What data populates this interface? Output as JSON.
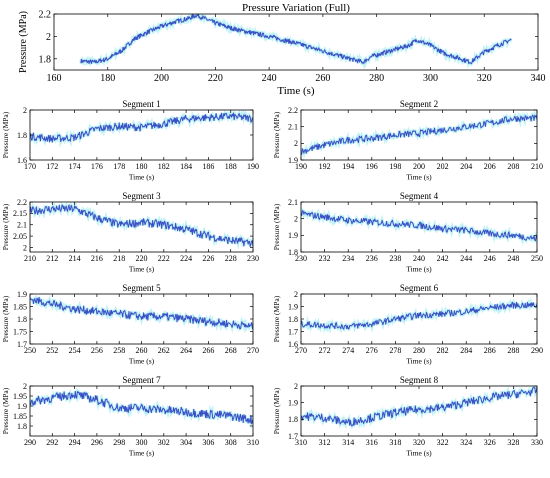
{
  "chart_data": [
    {
      "type": "line",
      "title": "Pressure Variation (Full)",
      "xlabel": "Time (s)",
      "ylabel": "Pressure (MPa)",
      "xlim": [
        160,
        340
      ],
      "ylim": [
        1.7,
        2.2
      ],
      "xticks": [
        160,
        180,
        200,
        220,
        240,
        260,
        280,
        300,
        320,
        340
      ],
      "yticks": [
        1.8,
        2,
        2.2
      ],
      "grid": false,
      "series": [
        {
          "x": [
            170,
            175,
            180,
            185,
            190,
            195,
            200,
            205,
            210,
            213,
            215,
            220,
            225,
            230,
            240,
            250,
            260,
            270,
            275,
            278,
            285,
            292,
            295,
            300,
            305,
            310,
            315,
            320,
            325,
            330
          ],
          "y": [
            1.78,
            1.77,
            1.8,
            1.87,
            1.98,
            2.04,
            2.09,
            2.13,
            2.16,
            2.19,
            2.17,
            2.12,
            2.08,
            2.05,
            2.0,
            1.94,
            1.87,
            1.8,
            1.77,
            1.82,
            1.87,
            1.92,
            1.97,
            1.92,
            1.85,
            1.81,
            1.77,
            1.86,
            1.92,
            1.97
          ],
          "noise": 0.02
        }
      ]
    },
    {
      "type": "line",
      "title": "Segment 1",
      "xlabel": "Time (s)",
      "ylabel": "Pressure (MPa)",
      "xlim": [
        170,
        190
      ],
      "ylim": [
        1.6,
        2.0
      ],
      "xticks": [
        170,
        172,
        174,
        176,
        178,
        180,
        182,
        184,
        186,
        188,
        190
      ],
      "yticks": [
        1.6,
        1.8,
        2
      ],
      "series": [
        {
          "x": [
            170,
            172,
            174,
            176,
            178,
            180,
            182,
            184,
            186,
            188,
            190
          ],
          "y": [
            1.79,
            1.77,
            1.78,
            1.85,
            1.87,
            1.86,
            1.89,
            1.93,
            1.94,
            1.95,
            1.93
          ],
          "noise": 0.03
        }
      ]
    },
    {
      "type": "line",
      "title": "Segment 2",
      "xlabel": "Time (s)",
      "ylabel": "Pressure (MPa)",
      "xlim": [
        190,
        210
      ],
      "ylim": [
        1.9,
        2.2
      ],
      "xticks": [
        190,
        192,
        194,
        196,
        198,
        200,
        202,
        204,
        206,
        208,
        210
      ],
      "yticks": [
        1.9,
        2,
        2.1,
        2.2
      ],
      "series": [
        {
          "x": [
            190,
            192,
            194,
            196,
            198,
            200,
            202,
            204,
            206,
            208,
            210
          ],
          "y": [
            1.95,
            1.99,
            2.02,
            2.03,
            2.05,
            2.06,
            2.08,
            2.1,
            2.12,
            2.15,
            2.15
          ],
          "noise": 0.02
        }
      ]
    },
    {
      "type": "line",
      "title": "Segment 3",
      "xlabel": "Time (s)",
      "ylabel": "Pressure (MPa)",
      "xlim": [
        210,
        230
      ],
      "ylim": [
        1.98,
        2.2
      ],
      "xticks": [
        210,
        212,
        214,
        216,
        218,
        220,
        222,
        224,
        226,
        228,
        230
      ],
      "yticks": [
        2,
        2.05,
        2.1,
        2.15,
        2.2
      ],
      "series": [
        {
          "x": [
            210,
            212,
            214,
            216,
            218,
            220,
            222,
            224,
            226,
            228,
            230
          ],
          "y": [
            2.16,
            2.17,
            2.17,
            2.13,
            2.1,
            2.11,
            2.1,
            2.08,
            2.05,
            2.03,
            2.02
          ],
          "noise": 0.018
        }
      ]
    },
    {
      "type": "line",
      "title": "Segment 4",
      "xlabel": "Time (s)",
      "ylabel": "Pressure (MPa)",
      "xlim": [
        230,
        250
      ],
      "ylim": [
        1.8,
        2.1
      ],
      "xticks": [
        230,
        232,
        234,
        236,
        238,
        240,
        242,
        244,
        246,
        248,
        250
      ],
      "yticks": [
        1.8,
        1.9,
        2,
        2.1
      ],
      "series": [
        {
          "x": [
            230,
            232,
            234,
            236,
            238,
            240,
            242,
            244,
            246,
            248,
            250
          ],
          "y": [
            2.03,
            2.01,
            1.99,
            1.98,
            1.97,
            1.96,
            1.94,
            1.93,
            1.91,
            1.9,
            1.88
          ],
          "noise": 0.02
        }
      ]
    },
    {
      "type": "line",
      "title": "Segment 5",
      "xlabel": "Time (s)",
      "ylabel": "Pressure (MPa)",
      "xlim": [
        250,
        270
      ],
      "ylim": [
        1.7,
        1.9
      ],
      "xticks": [
        250,
        252,
        254,
        256,
        258,
        260,
        262,
        264,
        266,
        268,
        270
      ],
      "yticks": [
        1.7,
        1.75,
        1.8,
        1.85,
        1.9
      ],
      "series": [
        {
          "x": [
            250,
            252,
            254,
            256,
            258,
            260,
            262,
            264,
            266,
            268,
            270
          ],
          "y": [
            1.88,
            1.86,
            1.84,
            1.83,
            1.82,
            1.81,
            1.81,
            1.8,
            1.79,
            1.78,
            1.77
          ],
          "noise": 0.016
        }
      ]
    },
    {
      "type": "line",
      "title": "Segment 6",
      "xlabel": "Time (s)",
      "ylabel": "Pressure (MPa)",
      "xlim": [
        270,
        290
      ],
      "ylim": [
        1.6,
        2.0
      ],
      "xticks": [
        270,
        272,
        274,
        276,
        278,
        280,
        282,
        284,
        286,
        288,
        290
      ],
      "yticks": [
        1.6,
        1.7,
        1.8,
        1.9,
        2
      ],
      "series": [
        {
          "x": [
            270,
            272,
            274,
            276,
            278,
            280,
            282,
            284,
            286,
            288,
            290
          ],
          "y": [
            1.76,
            1.75,
            1.74,
            1.76,
            1.8,
            1.83,
            1.84,
            1.86,
            1.89,
            1.91,
            1.91
          ],
          "noise": 0.025
        }
      ]
    },
    {
      "type": "line",
      "title": "Segment 7",
      "xlabel": "Time (s)",
      "ylabel": "Pressure (MPa)",
      "xlim": [
        290,
        310
      ],
      "ylim": [
        1.75,
        2.0
      ],
      "xticks": [
        290,
        292,
        294,
        296,
        298,
        300,
        302,
        304,
        306,
        308,
        310
      ],
      "yticks": [
        1.8,
        1.85,
        1.9,
        1.95,
        2
      ],
      "series": [
        {
          "x": [
            290,
            292,
            294,
            296,
            298,
            300,
            302,
            304,
            306,
            308,
            310
          ],
          "y": [
            1.92,
            1.94,
            1.96,
            1.93,
            1.89,
            1.89,
            1.88,
            1.87,
            1.86,
            1.85,
            1.83
          ],
          "noise": 0.022
        }
      ]
    },
    {
      "type": "line",
      "title": "Segment 8",
      "xlabel": "Time (s)",
      "ylabel": "Pressure (MPa)",
      "xlim": [
        310,
        330
      ],
      "ylim": [
        1.7,
        2.0
      ],
      "xticks": [
        310,
        312,
        314,
        316,
        318,
        320,
        322,
        324,
        326,
        328,
        330
      ],
      "yticks": [
        1.7,
        1.8,
        1.9,
        2
      ],
      "series": [
        {
          "x": [
            310,
            312,
            314,
            316,
            318,
            320,
            322,
            324,
            326,
            328,
            330
          ],
          "y": [
            1.82,
            1.81,
            1.78,
            1.81,
            1.84,
            1.86,
            1.87,
            1.9,
            1.93,
            1.95,
            1.97
          ],
          "noise": 0.025
        }
      ]
    }
  ],
  "colors": {
    "line": "#3b4fc4",
    "highlight": "#7fe8f0"
  }
}
